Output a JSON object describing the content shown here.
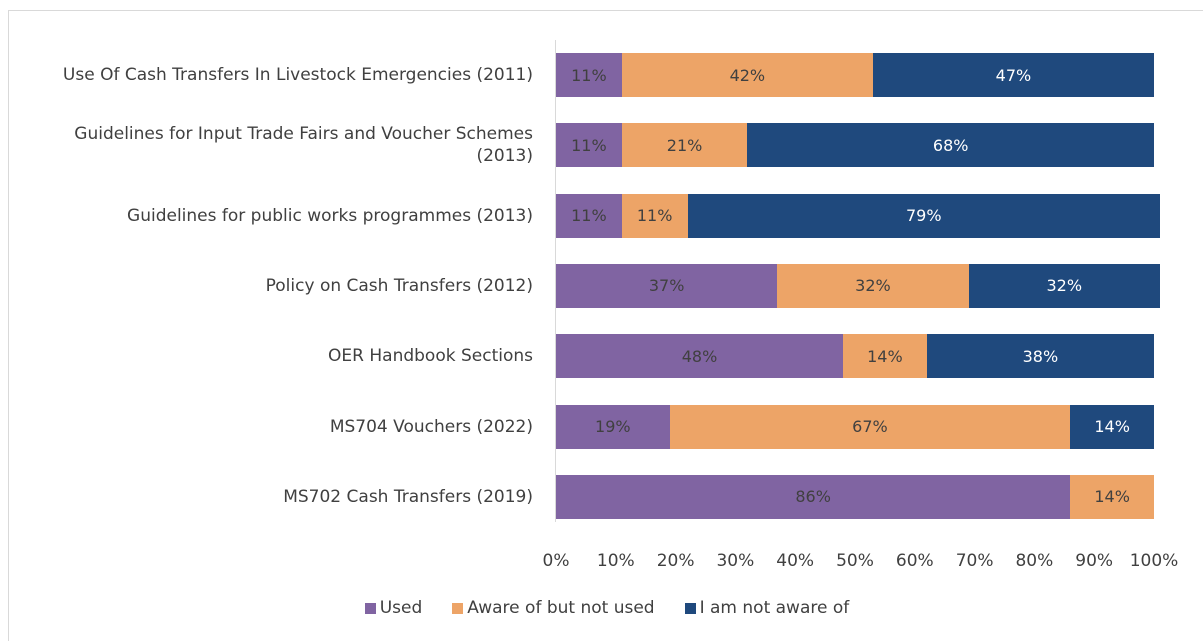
{
  "chart_data": {
    "type": "stacked-bar-horizontal",
    "categories": [
      "Use Of Cash Transfers In Livestock Emergencies (2011)",
      "Guidelines for Input Trade Fairs and Voucher Schemes (2013)",
      "Guidelines for public works programmes (2013)",
      "Policy on Cash Transfers (2012)",
      "OER Handbook Sections",
      "MS704 Vouchers (2022)",
      "MS702 Cash Transfers (2019)"
    ],
    "series": [
      {
        "name": "Used",
        "color": "#8064a2",
        "label_color": "#404040",
        "values": [
          11,
          11,
          11,
          37,
          48,
          19,
          86
        ],
        "value_labels": [
          "11%",
          "11%",
          "11%",
          "37%",
          "48%",
          "19%",
          "86%"
        ]
      },
      {
        "name": "Aware of but not used",
        "color": "#eda467",
        "label_color": "#404040",
        "values": [
          42,
          21,
          11,
          32,
          14,
          67,
          14
        ],
        "value_labels": [
          "42%",
          "21%",
          "11%",
          "32%",
          "14%",
          "67%",
          "14%"
        ]
      },
      {
        "name": "I am not aware of",
        "color": "#1f497d",
        "label_color": "#ffffff",
        "values": [
          47,
          68,
          79,
          32,
          38,
          14,
          null
        ],
        "value_labels": [
          "47%",
          "68%",
          "79%",
          "32%",
          "38%",
          "14%",
          null
        ]
      }
    ],
    "xlim": [
      0,
      100
    ],
    "xticks": [
      {
        "value": 0,
        "label": "0%"
      },
      {
        "value": 10,
        "label": "10%"
      },
      {
        "value": 20,
        "label": "20%"
      },
      {
        "value": 30,
        "label": "30%"
      },
      {
        "value": 40,
        "label": "40%"
      },
      {
        "value": 50,
        "label": "50%"
      },
      {
        "value": 60,
        "label": "60%"
      },
      {
        "value": 70,
        "label": "70%"
      },
      {
        "value": 80,
        "label": "80%"
      },
      {
        "value": 90,
        "label": "90%"
      },
      {
        "value": 100,
        "label": "100%"
      }
    ],
    "legend": "bottom"
  }
}
